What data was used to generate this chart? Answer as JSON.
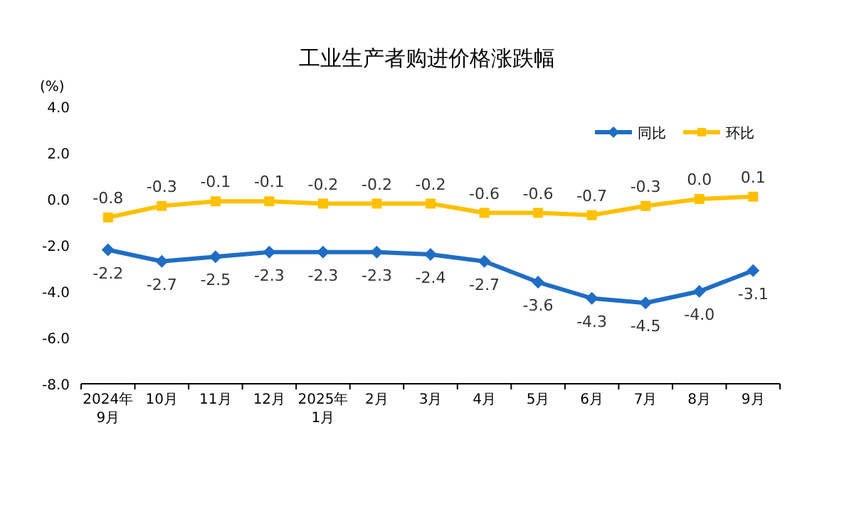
{
  "chart_data": {
    "type": "line",
    "title": "工业生产者购进价格涨跌幅",
    "ylabel": "(%)",
    "categories": [
      "2024年\n9月",
      "10月",
      "11月",
      "12月",
      "2025年\n1月",
      "2月",
      "3月",
      "4月",
      "5月",
      "6月",
      "7月",
      "8月",
      "9月"
    ],
    "ylim": [
      -8,
      4
    ],
    "yticks": [
      {
        "value": 4,
        "label": "4.0"
      },
      {
        "value": 2,
        "label": "2.0"
      },
      {
        "value": 0,
        "label": "0.0"
      },
      {
        "value": -2,
        "label": "-2.0"
      },
      {
        "value": -4,
        "label": "-4.0"
      },
      {
        "value": -6,
        "label": "-6.0"
      },
      {
        "value": -8,
        "label": "-8.0"
      }
    ],
    "series": [
      {
        "name": "同比",
        "color": "#1f6dc4",
        "marker": "diamond",
        "values": [
          -2.2,
          -2.7,
          -2.5,
          -2.3,
          -2.3,
          -2.3,
          -2.4,
          -2.7,
          -3.6,
          -4.3,
          -4.5,
          -4.0,
          -3.1
        ],
        "value_labels": [
          "-2.2",
          "-2.7",
          "-2.5",
          "-2.3",
          "-2.3",
          "-2.3",
          "-2.4",
          "-2.7",
          "-3.6",
          "-4.3",
          "-4.5",
          "-4.0",
          "-3.1"
        ]
      },
      {
        "name": "环比",
        "color": "#ffc000",
        "marker": "square",
        "values": [
          -0.8,
          -0.3,
          -0.1,
          -0.1,
          -0.2,
          -0.2,
          -0.2,
          -0.6,
          -0.6,
          -0.7,
          -0.3,
          0.0,
          0.1
        ],
        "value_labels": [
          "-0.8",
          "-0.3",
          "-0.1",
          "-0.1",
          "-0.2",
          "-0.2",
          "-0.2",
          "-0.6",
          "-0.6",
          "-0.7",
          "-0.3",
          "0.0",
          "0.1"
        ]
      }
    ],
    "legend": "top right",
    "grid": false
  }
}
